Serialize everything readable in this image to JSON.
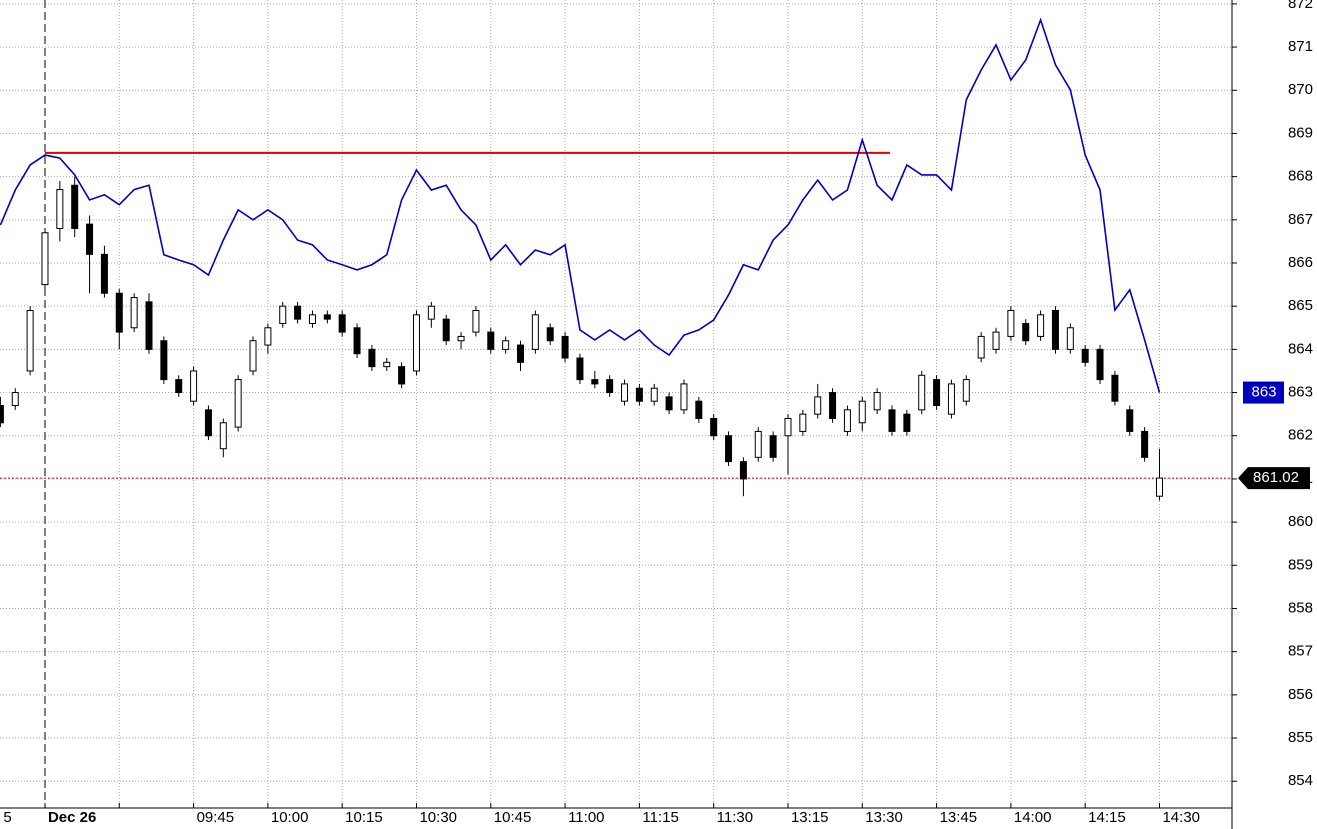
{
  "chart_data": {
    "type": "candlestick",
    "categories": [
      "5",
      null,
      null,
      "Dec 26",
      null,
      null,
      null,
      null,
      null,
      null,
      null,
      null,
      null,
      "09:45",
      null,
      null,
      null,
      null,
      "10:00",
      null,
      null,
      null,
      null,
      "10:15",
      null,
      null,
      null,
      null,
      "10:30",
      null,
      null,
      null,
      null,
      "10:45",
      null,
      null,
      null,
      null,
      "11:00",
      null,
      null,
      null,
      null,
      "11:15",
      null,
      null,
      null,
      null,
      "11:30",
      null,
      null,
      null,
      null,
      "13:15",
      null,
      null,
      null,
      null,
      "13:30",
      null,
      null,
      null,
      null,
      "13:45",
      null,
      null,
      null,
      null,
      "14:00",
      null,
      null,
      null,
      null,
      "14:15",
      null,
      null,
      null,
      null,
      "14:30"
    ],
    "ohlc": {
      "open": [
        862.7,
        862.7,
        863.5,
        865.5,
        866.8,
        867.8,
        866.9,
        866.2,
        865.3,
        864.5,
        865.1,
        864.2,
        863.3,
        862.8,
        862.6,
        861.7,
        862.2,
        863.5,
        864.1,
        864.6,
        865.0,
        864.6,
        864.8,
        864.8,
        864.5,
        864.0,
        863.6,
        863.6,
        863.5,
        864.7,
        864.7,
        864.2,
        864.4,
        864.4,
        864.0,
        864.1,
        864.0,
        864.5,
        864.3,
        863.8,
        863.3,
        863.3,
        862.8,
        863.1,
        862.8,
        862.9,
        862.6,
        862.8,
        862.4,
        862.0,
        861.4,
        861.5,
        862.0,
        862.0,
        862.1,
        862.5,
        863.0,
        862.1,
        862.3,
        862.6,
        862.6,
        862.5,
        862.6,
        863.3,
        862.5,
        862.8,
        863.8,
        864.0,
        864.3,
        864.6,
        864.3,
        864.9,
        864.0,
        864.0,
        864.0,
        863.4,
        862.6,
        862.1,
        860.6
      ],
      "high": [
        862.9,
        863.1,
        865.0,
        866.8,
        867.9,
        868.0,
        867.1,
        866.4,
        865.4,
        865.3,
        865.3,
        864.3,
        863.4,
        863.6,
        862.7,
        862.4,
        863.4,
        864.3,
        864.6,
        865.1,
        865.1,
        864.9,
        864.9,
        864.9,
        864.6,
        864.1,
        863.8,
        863.7,
        864.9,
        865.1,
        864.8,
        864.4,
        865.0,
        864.5,
        864.3,
        864.2,
        864.9,
        864.6,
        864.4,
        863.9,
        863.5,
        863.4,
        863.3,
        863.2,
        863.2,
        863.0,
        863.3,
        862.9,
        862.5,
        862.1,
        861.5,
        862.2,
        862.1,
        862.5,
        862.6,
        863.2,
        863.1,
        862.7,
        862.9,
        863.1,
        862.7,
        862.6,
        863.5,
        863.4,
        863.3,
        863.4,
        864.4,
        864.5,
        865.0,
        864.7,
        864.9,
        865.0,
        864.6,
        864.1,
        864.1,
        863.5,
        862.7,
        862.2,
        861.7
      ],
      "low": [
        862.2,
        862.6,
        863.4,
        865.4,
        866.5,
        866.6,
        865.3,
        865.2,
        864.0,
        864.4,
        863.9,
        863.2,
        862.9,
        862.7,
        861.9,
        861.5,
        862.1,
        863.4,
        863.9,
        864.5,
        864.6,
        864.5,
        864.6,
        864.3,
        863.8,
        863.5,
        863.5,
        863.1,
        863.4,
        864.5,
        864.1,
        864.0,
        864.3,
        863.9,
        863.9,
        863.5,
        863.9,
        864.1,
        863.7,
        863.2,
        863.1,
        862.9,
        862.7,
        862.7,
        862.7,
        862.5,
        862.5,
        862.3,
        861.9,
        861.3,
        860.6,
        861.4,
        861.4,
        861.1,
        862.0,
        862.4,
        862.3,
        862.0,
        862.1,
        862.5,
        862.0,
        862.0,
        862.5,
        862.6,
        862.4,
        862.7,
        863.7,
        863.9,
        864.2,
        864.1,
        864.2,
        863.9,
        863.9,
        863.6,
        863.2,
        862.7,
        862.0,
        861.4,
        860.5
      ],
      "close": [
        862.3,
        863.0,
        864.9,
        866.7,
        867.7,
        866.8,
        866.2,
        865.3,
        864.4,
        865.2,
        864.0,
        863.3,
        863.0,
        863.5,
        862.0,
        862.3,
        863.3,
        864.2,
        864.5,
        865.0,
        864.7,
        864.8,
        864.7,
        864.4,
        863.9,
        863.6,
        863.7,
        863.2,
        864.8,
        865.0,
        864.2,
        864.3,
        864.9,
        864.0,
        864.2,
        863.7,
        864.8,
        864.2,
        863.8,
        863.3,
        863.2,
        863.0,
        863.2,
        862.8,
        863.1,
        862.6,
        863.2,
        862.4,
        862.0,
        861.4,
        861.0,
        862.1,
        861.5,
        862.4,
        862.5,
        862.9,
        862.4,
        862.6,
        862.8,
        863.0,
        862.1,
        862.1,
        863.4,
        862.7,
        863.2,
        863.3,
        864.3,
        864.4,
        864.9,
        864.2,
        864.8,
        864.0,
        864.5,
        863.7,
        863.3,
        862.8,
        862.1,
        861.5,
        861.02
      ]
    },
    "line": {
      "color": "#0000c0",
      "values": [
        866.88,
        867.69,
        868.27,
        868.5,
        868.43,
        868.04,
        867.46,
        867.58,
        867.35,
        867.7,
        867.8,
        866.19,
        866.07,
        865.96,
        865.72,
        866.53,
        867.23,
        867.0,
        867.23,
        867.0,
        866.53,
        866.42,
        866.07,
        865.96,
        865.84,
        865.96,
        866.19,
        867.46,
        868.15,
        867.69,
        867.8,
        867.23,
        866.88,
        866.07,
        866.42,
        865.96,
        866.3,
        866.19,
        866.42,
        864.45,
        864.22,
        864.45,
        864.22,
        864.45,
        864.1,
        863.87,
        864.33,
        864.45,
        864.68,
        865.26,
        865.96,
        865.84,
        866.53,
        866.88,
        867.46,
        867.92,
        867.46,
        867.69,
        868.85,
        867.8,
        867.46,
        868.27,
        868.04,
        868.04,
        867.69,
        869.78,
        870.47,
        871.05,
        870.24,
        870.7,
        871.63,
        870.59,
        870.01,
        868.5,
        867.69,
        864.91,
        865.38,
        864.22,
        863
      ]
    },
    "hline": 868.55,
    "hline_color": "#e00000",
    "ylim": [
      853.38,
      872.09
    ],
    "yticks": [
      854,
      855,
      856,
      857,
      858,
      859,
      860,
      861,
      862,
      863,
      864,
      865,
      866,
      867,
      868,
      869,
      870,
      871,
      872
    ],
    "grid": true
  }
}
